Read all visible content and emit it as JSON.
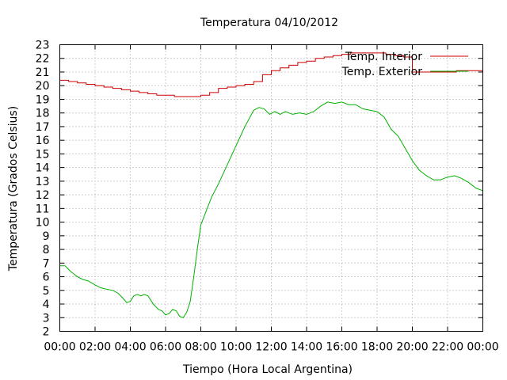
{
  "chart_data": {
    "type": "line",
    "title": "Temperatura 04/10/2012",
    "xlabel": "Tiempo (Hora Local Argentina)",
    "ylabel": "Temperatura (Grados Celsius)",
    "xlim": [
      0,
      24
    ],
    "ylim": [
      2,
      23
    ],
    "x_tick_labels": [
      "00:00",
      "02:00",
      "04:00",
      "06:00",
      "08:00",
      "10:00",
      "12:00",
      "14:00",
      "16:00",
      "18:00",
      "20:00",
      "22:00",
      "00:00"
    ],
    "y_ticks": [
      2,
      3,
      4,
      5,
      6,
      7,
      8,
      9,
      10,
      11,
      12,
      13,
      14,
      15,
      16,
      17,
      18,
      19,
      20,
      21,
      22,
      23
    ],
    "grid": true,
    "legend_position": "top-right",
    "series": [
      {
        "name": "Temp. Interior",
        "color": "#cc0000",
        "step": true,
        "x": [
          0,
          0.5,
          1,
          1.5,
          2,
          2.5,
          3,
          3.5,
          4,
          4.5,
          5,
          5.5,
          6,
          6.5,
          7,
          7.5,
          8,
          8.5,
          9,
          9.5,
          10,
          10.5,
          11,
          11.5,
          12,
          12.5,
          13,
          13.5,
          14,
          14.5,
          15,
          15.5,
          16,
          16.5,
          17,
          17.5,
          18,
          18.5,
          19,
          19.5,
          20,
          20.5,
          21,
          21.5,
          22,
          22.5,
          23,
          23.5,
          24
        ],
        "values": [
          20.4,
          20.3,
          20.2,
          20.1,
          20.0,
          19.9,
          19.8,
          19.7,
          19.6,
          19.5,
          19.4,
          19.3,
          19.3,
          19.2,
          19.2,
          19.2,
          19.3,
          19.5,
          19.8,
          19.9,
          20.0,
          20.1,
          20.3,
          20.8,
          21.1,
          21.3,
          21.5,
          21.7,
          21.8,
          22.0,
          22.1,
          22.2,
          22.3,
          22.4,
          22.4,
          22.4,
          22.4,
          22.3,
          22.2,
          22.1,
          21.0,
          21.0,
          21.0,
          21.0,
          21.0,
          21.1,
          21.1,
          21.1,
          21.0
        ]
      },
      {
        "name": "Temp. Exterior",
        "color": "#00b000",
        "step": false,
        "x": [
          0,
          0.3,
          0.6,
          0.8,
          1.0,
          1.3,
          1.6,
          2.0,
          2.3,
          2.6,
          3.0,
          3.3,
          3.6,
          3.8,
          4.0,
          4.2,
          4.4,
          4.6,
          4.8,
          5.0,
          5.3,
          5.6,
          5.8,
          6.0,
          6.2,
          6.4,
          6.6,
          6.8,
          7.0,
          7.2,
          7.4,
          7.6,
          7.8,
          8.0,
          8.3,
          8.6,
          9.0,
          9.5,
          10.0,
          10.5,
          11.0,
          11.3,
          11.6,
          11.9,
          12.2,
          12.5,
          12.8,
          13.2,
          13.6,
          14.0,
          14.4,
          14.8,
          15.2,
          15.6,
          16.0,
          16.4,
          16.8,
          17.2,
          17.6,
          18.0,
          18.4,
          18.8,
          19.2,
          19.6,
          20.0,
          20.4,
          20.8,
          21.2,
          21.6,
          22.0,
          22.4,
          22.8,
          23.2,
          23.6,
          24.0
        ],
        "values": [
          6.8,
          6.8,
          6.4,
          6.2,
          6.0,
          5.8,
          5.7,
          5.4,
          5.2,
          5.1,
          5.0,
          4.8,
          4.4,
          4.1,
          4.2,
          4.6,
          4.7,
          4.6,
          4.7,
          4.6,
          4.0,
          3.6,
          3.5,
          3.2,
          3.3,
          3.6,
          3.5,
          3.1,
          3.0,
          3.4,
          4.2,
          6.0,
          8.0,
          9.8,
          10.8,
          11.8,
          12.8,
          14.2,
          15.6,
          17.0,
          18.2,
          18.4,
          18.3,
          17.9,
          18.1,
          17.9,
          18.1,
          17.9,
          18.0,
          17.9,
          18.1,
          18.5,
          18.8,
          18.7,
          18.8,
          18.6,
          18.6,
          18.3,
          18.2,
          18.1,
          17.7,
          16.8,
          16.3,
          15.4,
          14.5,
          13.8,
          13.4,
          13.1,
          13.1,
          13.3,
          13.4,
          13.2,
          12.9,
          12.5,
          12.3
        ]
      }
    ]
  }
}
